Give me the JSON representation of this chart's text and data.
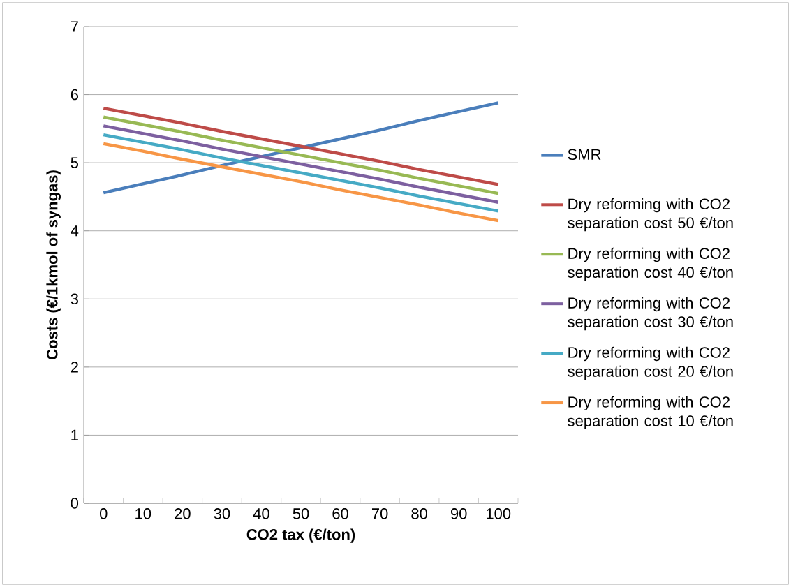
{
  "chart_data": {
    "type": "line",
    "xlabel": "CO2 tax (€/ton)",
    "ylabel": "Costs (€/1kmol of syngas)",
    "categories": [
      "0",
      "10",
      "20",
      "30",
      "40",
      "50",
      "60",
      "70",
      "80",
      "90",
      "100"
    ],
    "ylim": [
      0,
      7
    ],
    "yticks": [
      0,
      1,
      2,
      3,
      4,
      5,
      6,
      7
    ],
    "grid": "y",
    "legend": "right",
    "marker": "none",
    "line_style": "solid",
    "series": [
      {
        "name": "SMR",
        "color": "#4a7ebb",
        "values": [
          4.56,
          4.69,
          4.82,
          4.96,
          5.09,
          5.22,
          5.35,
          5.48,
          5.62,
          5.75,
          5.88
        ]
      },
      {
        "name": "Dry reforming with CO2 separation cost 50 €/ton",
        "color": "#be4b48",
        "values": [
          5.8,
          5.69,
          5.58,
          5.46,
          5.35,
          5.24,
          5.13,
          5.02,
          4.9,
          4.79,
          4.68
        ]
      },
      {
        "name": "Dry reforming with CO2 separation cost 40 €/ton",
        "color": "#98b954",
        "values": [
          5.67,
          5.56,
          5.45,
          5.33,
          5.22,
          5.11,
          5.0,
          4.89,
          4.77,
          4.66,
          4.55
        ]
      },
      {
        "name": "Dry reforming with CO2 separation cost 30 €/ton",
        "color": "#7d60a0",
        "values": [
          5.54,
          5.43,
          5.32,
          5.2,
          5.09,
          4.98,
          4.87,
          4.76,
          4.64,
          4.53,
          4.42
        ]
      },
      {
        "name": "Dry reforming with CO2 separation cost 20 €/ton",
        "color": "#46aac5",
        "values": [
          5.41,
          5.3,
          5.19,
          5.07,
          4.96,
          4.85,
          4.74,
          4.63,
          4.51,
          4.4,
          4.29
        ]
      },
      {
        "name": "Dry reforming with CO2 separation cost 10 €/ton",
        "color": "#f79646",
        "values": [
          5.28,
          5.17,
          5.05,
          4.94,
          4.83,
          4.72,
          4.6,
          4.49,
          4.38,
          4.26,
          4.15
        ]
      }
    ]
  }
}
